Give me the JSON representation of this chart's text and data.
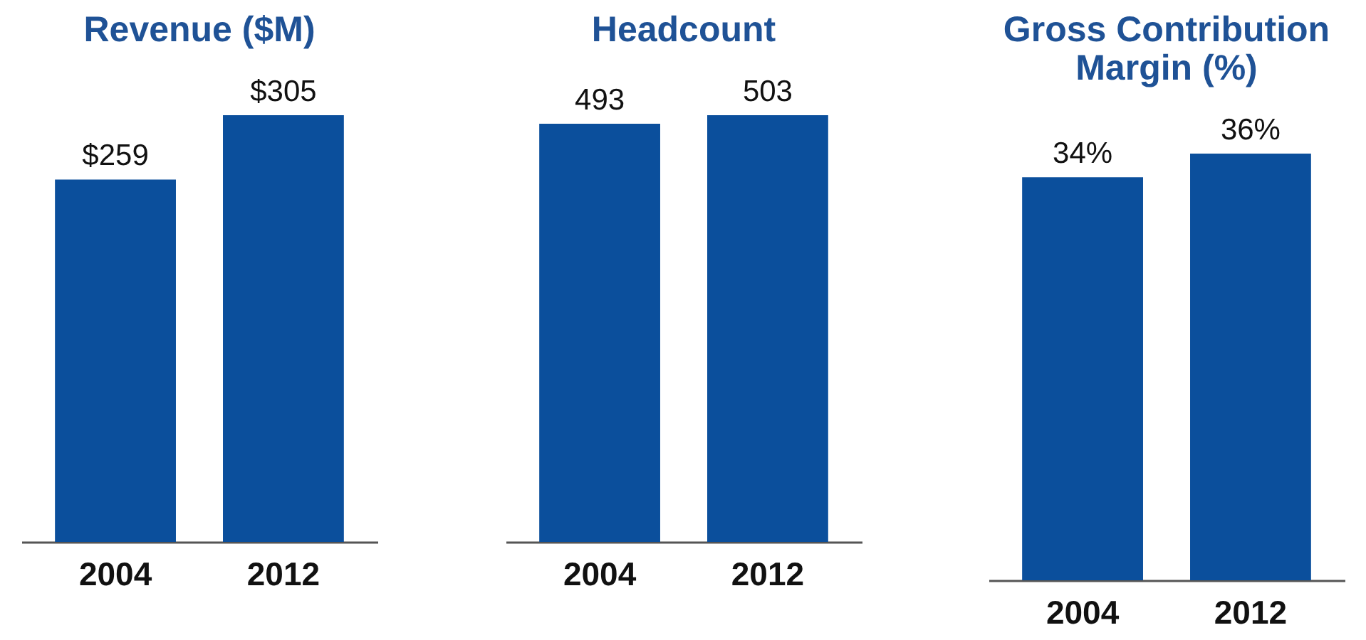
{
  "chart_data": [
    {
      "type": "bar",
      "title": "Revenue ($M)",
      "categories": [
        "2004",
        "2012"
      ],
      "values": [
        259,
        305
      ],
      "value_labels": [
        "$259",
        "$305"
      ],
      "color": "#0b4f9c"
    },
    {
      "type": "bar",
      "title": "Headcount",
      "categories": [
        "2004",
        "2012"
      ],
      "values": [
        493,
        503
      ],
      "data_labels": true,
      "color": "#0b4f9c"
    },
    {
      "type": "bar",
      "title": "Gross Contribution Margin (%)",
      "categories": [
        "2004",
        "2012"
      ],
      "values": [
        34,
        36
      ],
      "value_labels": [
        "34%",
        "36%"
      ],
      "color": "#0b4f9c"
    }
  ]
}
